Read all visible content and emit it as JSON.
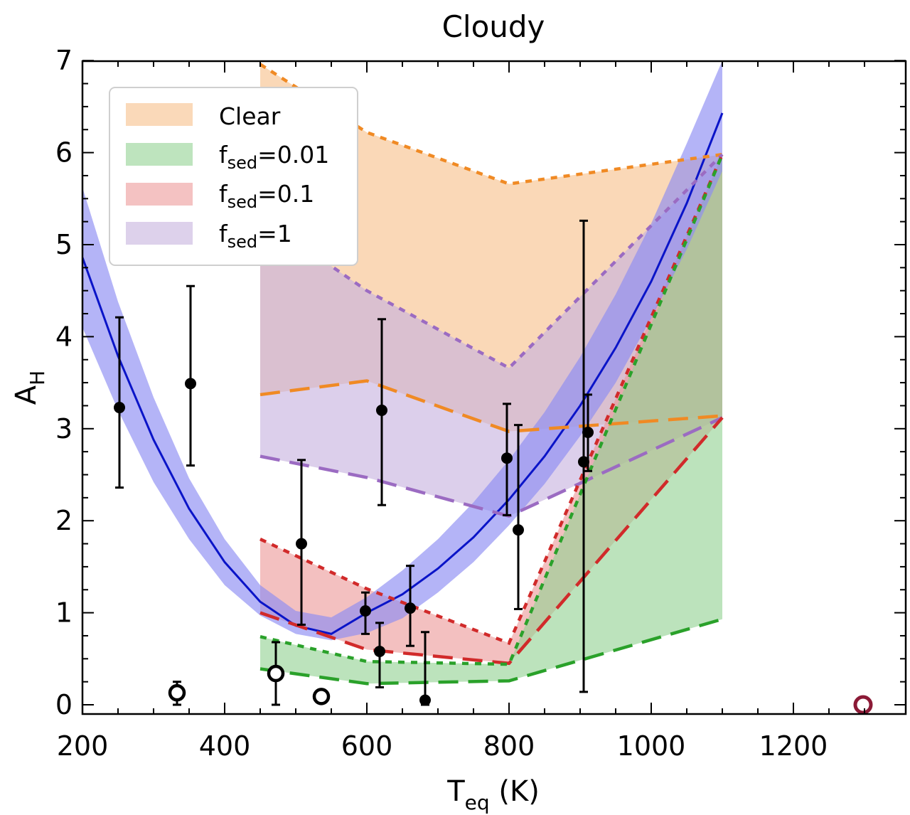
{
  "chart_data": {
    "type": "line",
    "title": "Cloudy",
    "xlabel": {
      "main": "T",
      "sub": "eq",
      "unit": " (K)"
    },
    "ylabel": {
      "main": "A",
      "sub": "H"
    },
    "xlim": [
      200,
      1350
    ],
    "ylim": [
      -0.1,
      7
    ],
    "xticks": [
      200,
      400,
      600,
      800,
      1000,
      1200
    ],
    "yticks": [
      0,
      1,
      2,
      3,
      4,
      5,
      6,
      7
    ],
    "xtick_labels": [
      "200",
      "400",
      "600",
      "800",
      "1000",
      "1200"
    ],
    "ytick_labels": [
      "0",
      "1",
      "2",
      "3",
      "4",
      "5",
      "6",
      "7"
    ],
    "legend": {
      "position": "top-left",
      "entries": [
        {
          "main": "Clear",
          "sub": "",
          "rest": "",
          "color": "#f7c08a"
        },
        {
          "main": "f",
          "sub": "sed",
          "rest": "=0.01",
          "color": "#93d293"
        },
        {
          "main": "f",
          "sub": "sed",
          "rest": "=0.1",
          "color": "#ec9a9a"
        },
        {
          "main": "f",
          "sub": "sed",
          "rest": "=1",
          "color": "#c6b2de"
        }
      ]
    },
    "fit": {
      "x": [
        200,
        250,
        300,
        350,
        400,
        450,
        500,
        550,
        600,
        650,
        700,
        750,
        800,
        850,
        900,
        950,
        1000,
        1050,
        1100
      ],
      "y": [
        4.86,
        3.79,
        2.88,
        2.13,
        1.55,
        1.12,
        0.86,
        0.77,
        1.0,
        1.2,
        1.48,
        1.82,
        2.23,
        2.7,
        3.25,
        3.88,
        4.6,
        5.45,
        6.43
      ],
      "band_lower": [
        4.1,
        3.2,
        2.42,
        1.8,
        1.3,
        0.97,
        0.77,
        0.7,
        0.78,
        0.94,
        1.22,
        1.55,
        1.95,
        2.4,
        2.92,
        3.5,
        4.2,
        4.95,
        5.8
      ],
      "band_upper": [
        5.62,
        4.38,
        3.34,
        2.46,
        1.8,
        1.3,
        1.02,
        0.95,
        1.17,
        1.46,
        1.8,
        2.2,
        2.66,
        3.18,
        3.78,
        4.46,
        5.23,
        6.1,
        7.0
      ],
      "line_color": "#0a14c8",
      "band_color": "#8c8cf2"
    },
    "model_bands": [
      {
        "name": "Clear",
        "color": "#f7c08a",
        "line_color": "#f08a24",
        "x": [
          450,
          600,
          800,
          1100
        ],
        "upper": [
          6.96,
          6.22,
          5.66,
          5.98
        ],
        "lower": [
          3.37,
          3.52,
          2.97,
          3.14
        ]
      },
      {
        "name": "f_sed=1",
        "color": "#c6b2de",
        "line_color": "#9b6bc2",
        "x": [
          450,
          600,
          800,
          1100
        ],
        "upper": [
          5.3,
          4.5,
          3.66,
          5.98
        ],
        "lower": [
          2.7,
          2.47,
          2.05,
          3.12
        ]
      },
      {
        "name": "f_sed=0.1",
        "color": "#ec9a9a",
        "line_color": "#d12a2a",
        "x": [
          450,
          600,
          800,
          1100
        ],
        "upper": [
          1.8,
          1.26,
          0.67,
          5.98
        ],
        "lower": [
          1.0,
          0.6,
          0.45,
          3.12
        ]
      },
      {
        "name": "f_sed=0.01",
        "color": "#93d293",
        "line_color": "#2aa12a",
        "x": [
          450,
          600,
          800,
          1100
        ],
        "upper": [
          0.74,
          0.47,
          0.44,
          5.98
        ],
        "lower": [
          0.39,
          0.23,
          0.26,
          0.93
        ]
      }
    ],
    "points_filled": [
      {
        "x": 252,
        "y": 3.23,
        "yerr_lo": 2.36,
        "yerr_hi": 4.21
      },
      {
        "x": 352,
        "y": 3.49,
        "yerr_lo": 2.6,
        "yerr_hi": 4.55
      },
      {
        "x": 508,
        "y": 1.75,
        "yerr_lo": 0.87,
        "yerr_hi": 2.66
      },
      {
        "x": 598,
        "y": 1.02,
        "yerr_lo": 0.77,
        "yerr_hi": 1.22
      },
      {
        "x": 621,
        "y": 3.2,
        "yerr_lo": 2.17,
        "yerr_hi": 4.19
      },
      {
        "x": 618,
        "y": 0.58,
        "yerr_lo": 0.19,
        "yerr_hi": 0.89
      },
      {
        "x": 661,
        "y": 1.05,
        "yerr_lo": 0.64,
        "yerr_hi": 1.51
      },
      {
        "x": 682,
        "y": 0.05,
        "yerr_lo": 0.0,
        "yerr_hi": 0.79
      },
      {
        "x": 797,
        "y": 2.68,
        "yerr_lo": 2.06,
        "yerr_hi": 3.27
      },
      {
        "x": 813,
        "y": 1.9,
        "yerr_lo": 1.04,
        "yerr_hi": 3.04
      },
      {
        "x": 905,
        "y": 2.64,
        "yerr_lo": 0.14,
        "yerr_hi": 5.26
      },
      {
        "x": 911,
        "y": 2.96,
        "yerr_lo": 2.54,
        "yerr_hi": 3.37
      }
    ],
    "points_open": [
      {
        "x": 333,
        "y": 0.13,
        "yerr_lo": 0.0,
        "yerr_hi": 0.25
      },
      {
        "x": 472,
        "y": 0.34,
        "yerr_lo": 0.0,
        "yerr_hi": 0.68
      },
      {
        "x": 536,
        "y": 0.09,
        "yerr_lo": 0.09,
        "yerr_hi": 0.09
      }
    ],
    "points_open_red": [
      {
        "x": 1298,
        "y": 0.0
      }
    ],
    "point_colors": {
      "filled": "#000000",
      "open_red": "#8b1a36"
    }
  }
}
